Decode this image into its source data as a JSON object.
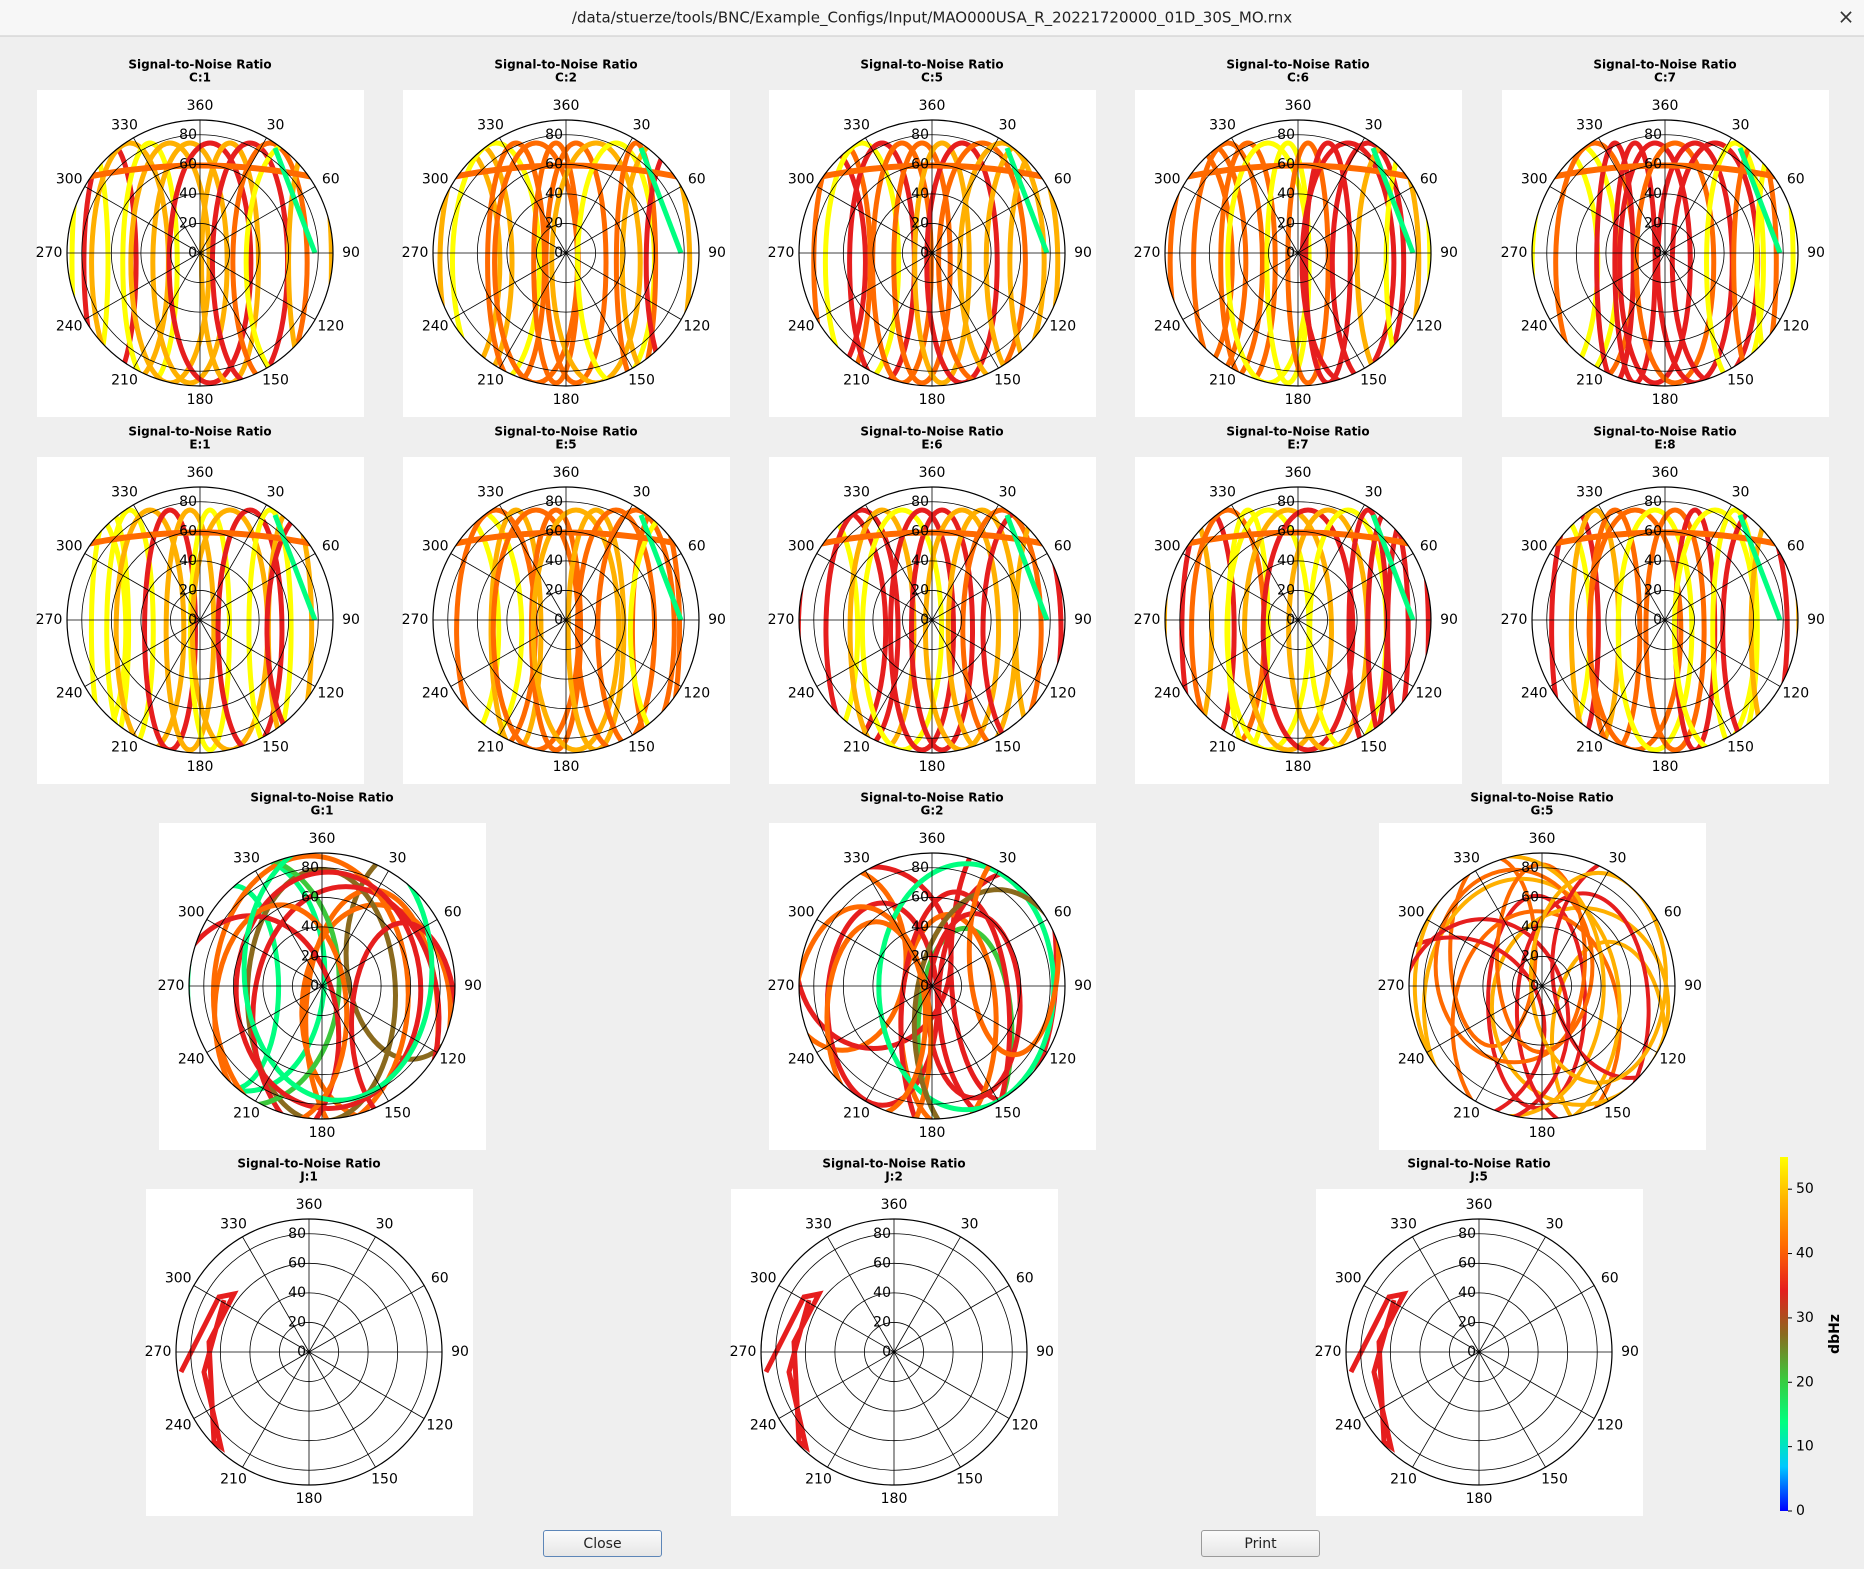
{
  "window": {
    "title": "/data/stuerze/tools/BNC/Example_Configs/Input/MAO000USA_R_20221720000_01D_30S_MO.rnx",
    "close_icon": "×"
  },
  "chart_data": {
    "type": "polar",
    "plots": [
      {
        "title": "Signal-to-Noise Ratio",
        "subtitle": "C:1"
      },
      {
        "title": "Signal-to-Noise Ratio",
        "subtitle": "C:2"
      },
      {
        "title": "Signal-to-Noise Ratio",
        "subtitle": "C:5"
      },
      {
        "title": "Signal-to-Noise Ratio",
        "subtitle": "C:6"
      },
      {
        "title": "Signal-to-Noise Ratio",
        "subtitle": "C:7"
      },
      {
        "title": "Signal-to-Noise Ratio",
        "subtitle": "E:1"
      },
      {
        "title": "Signal-to-Noise Ratio",
        "subtitle": "E:5"
      },
      {
        "title": "Signal-to-Noise Ratio",
        "subtitle": "E:6"
      },
      {
        "title": "Signal-to-Noise Ratio",
        "subtitle": "E:7"
      },
      {
        "title": "Signal-to-Noise Ratio",
        "subtitle": "E:8"
      },
      {
        "title": "Signal-to-Noise Ratio",
        "subtitle": "G:1"
      },
      {
        "title": "Signal-to-Noise Ratio",
        "subtitle": "G:2"
      },
      {
        "title": "Signal-to-Noise Ratio",
        "subtitle": "G:5"
      },
      {
        "title": "Signal-to-Noise Ratio",
        "subtitle": "J:1"
      },
      {
        "title": "Signal-to-Noise Ratio",
        "subtitle": "J:2"
      },
      {
        "title": "Signal-to-Noise Ratio",
        "subtitle": "J:5"
      }
    ],
    "azimuth_ticks": [
      {
        "value": 0,
        "label": "360"
      },
      30,
      60,
      90,
      120,
      150,
      180,
      210,
      240,
      270,
      300,
      330
    ],
    "rlim": [
      0,
      90
    ],
    "rticks": [
      0,
      20,
      40,
      60,
      80
    ],
    "colorbar": {
      "label": "dbHz",
      "lim": [
        0,
        55
      ],
      "ticks": [
        0,
        10,
        20,
        30,
        40,
        50
      ],
      "colors": [
        "#0000ff",
        "#00c8ff",
        "#00ff80",
        "#3cc83c",
        "#8a6a1e",
        "#e61e1e",
        "#ff6a00",
        "#ffb000",
        "#ffff00"
      ]
    }
  },
  "buttons": {
    "close": "Close",
    "print": "Print"
  }
}
